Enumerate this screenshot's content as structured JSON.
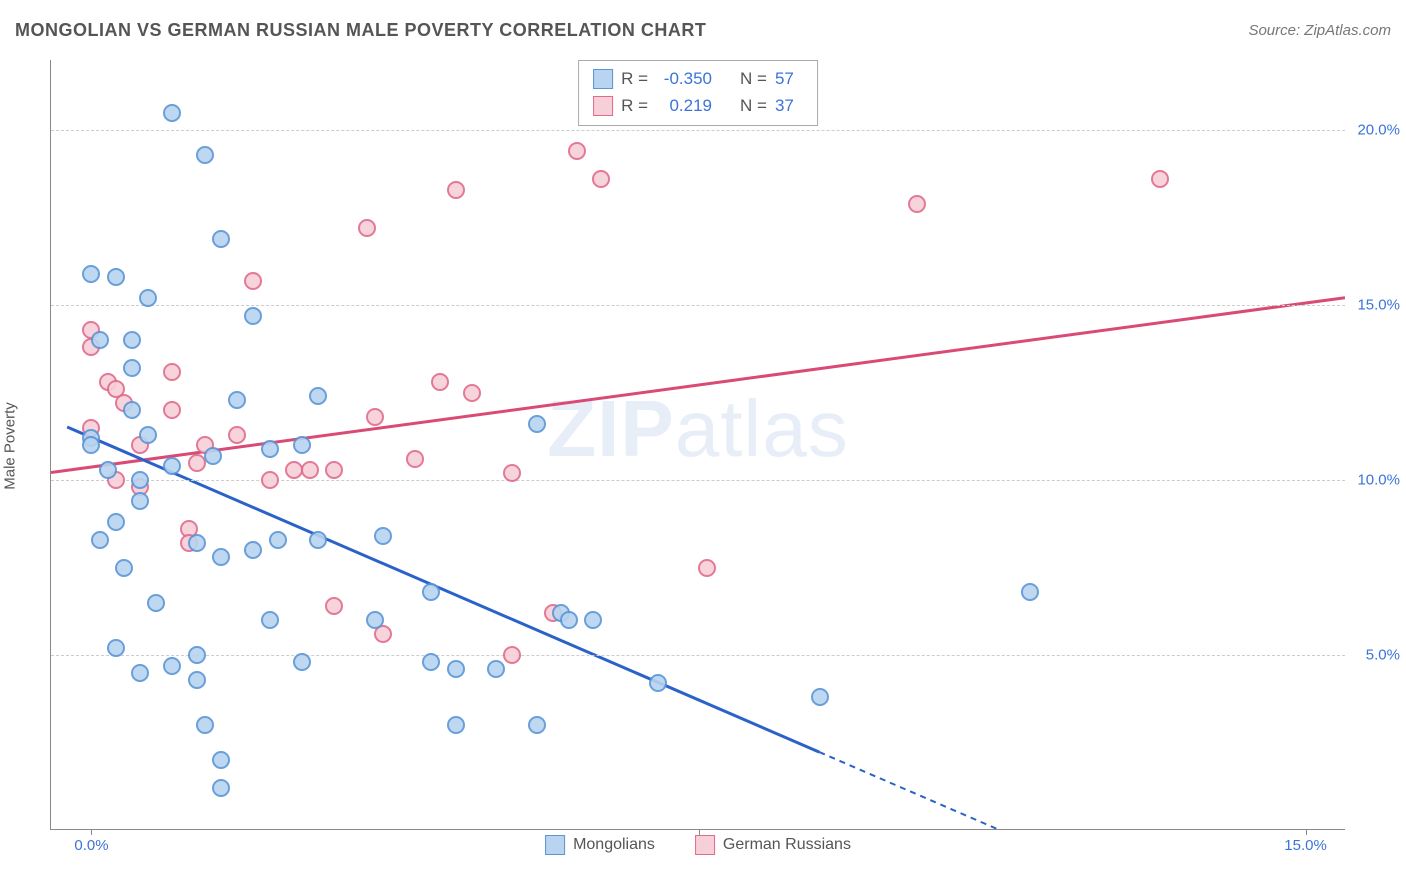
{
  "chart": {
    "type": "scatter",
    "title": "MONGOLIAN VS GERMAN RUSSIAN MALE POVERTY CORRELATION CHART",
    "title_color": "#555555",
    "title_fontsize": 18,
    "source": "Source: ZipAtlas.com",
    "source_color": "#777777",
    "watermark": "ZIPatlas",
    "watermark_color": "#e8eef8",
    "ylabel": "Male Poverty",
    "label_color": "#555555",
    "label_fontsize": 15,
    "background_color": "#ffffff",
    "axis_color": "#888888",
    "grid_color": "#cccccc",
    "grid_dash": true,
    "tick_label_color": "#3b74d8",
    "xlim": [
      -0.5,
      15.5
    ],
    "ylim": [
      0,
      22
    ],
    "xticks": [
      {
        "value": 0,
        "label": "0.0%"
      },
      {
        "value": 7.5,
        "label": ""
      },
      {
        "value": 15,
        "label": "15.0%"
      }
    ],
    "yticks": [
      {
        "value": 5,
        "label": "5.0%"
      },
      {
        "value": 10,
        "label": "10.0%"
      },
      {
        "value": 15,
        "label": "15.0%"
      },
      {
        "value": 20,
        "label": "20.0%"
      }
    ],
    "marker_radius": 9,
    "series_a": {
      "name": "Mongolians",
      "fill_color": "#b8d4f0",
      "border_color": "#5a95d6",
      "stats": {
        "R_label": "R =",
        "R_value": "-0.350",
        "N_label": "N =",
        "N_value": "57"
      },
      "trend": {
        "x1": -0.3,
        "y1": 11.5,
        "x2": 9.0,
        "y2": 2.2,
        "x3": 11.6,
        "y3": -0.4,
        "color": "#2a62c9",
        "width": 3
      },
      "points": [
        [
          0.1,
          14.0
        ],
        [
          0.0,
          15.9
        ],
        [
          0.3,
          15.8
        ],
        [
          0.0,
          11.2
        ],
        [
          0.0,
          11.0
        ],
        [
          0.5,
          14.0
        ],
        [
          0.7,
          15.2
        ],
        [
          1.0,
          20.5
        ],
        [
          1.4,
          19.3
        ],
        [
          1.6,
          16.9
        ],
        [
          1.5,
          10.7
        ],
        [
          0.7,
          11.3
        ],
        [
          0.5,
          12.0
        ],
        [
          0.2,
          10.3
        ],
        [
          0.6,
          9.4
        ],
        [
          1.0,
          10.4
        ],
        [
          1.3,
          8.2
        ],
        [
          1.6,
          7.8
        ],
        [
          0.3,
          8.8
        ],
        [
          0.1,
          8.3
        ],
        [
          0.4,
          7.5
        ],
        [
          0.8,
          6.5
        ],
        [
          1.3,
          5.0
        ],
        [
          1.0,
          4.7
        ],
        [
          1.3,
          4.3
        ],
        [
          0.3,
          5.2
        ],
        [
          0.6,
          4.5
        ],
        [
          1.8,
          12.3
        ],
        [
          2.0,
          14.7
        ],
        [
          2.2,
          10.9
        ],
        [
          2.6,
          11.0
        ],
        [
          2.3,
          8.3
        ],
        [
          2.8,
          12.4
        ],
        [
          2.8,
          8.3
        ],
        [
          2.0,
          8.0
        ],
        [
          2.2,
          6.0
        ],
        [
          2.6,
          4.8
        ],
        [
          1.4,
          3.0
        ],
        [
          1.6,
          2.0
        ],
        [
          1.6,
          1.2
        ],
        [
          3.6,
          8.4
        ],
        [
          3.5,
          6.0
        ],
        [
          4.2,
          4.8
        ],
        [
          4.5,
          4.6
        ],
        [
          4.5,
          3.0
        ],
        [
          4.2,
          6.8
        ],
        [
          5.0,
          4.6
        ],
        [
          5.5,
          11.6
        ],
        [
          5.8,
          6.2
        ],
        [
          5.9,
          6.0
        ],
        [
          6.2,
          6.0
        ],
        [
          7.0,
          4.2
        ],
        [
          5.5,
          3.0
        ],
        [
          9.0,
          3.8
        ],
        [
          11.6,
          6.8
        ],
        [
          0.5,
          13.2
        ],
        [
          0.6,
          10.0
        ]
      ]
    },
    "series_b": {
      "name": "German Russians",
      "fill_color": "#f7cfd9",
      "border_color": "#e16b8c",
      "stats": {
        "R_label": "R =",
        "R_value": " 0.219",
        "N_label": "N =",
        "N_value": "37"
      },
      "trend": {
        "x1": -0.5,
        "y1": 10.2,
        "x2": 15.5,
        "y2": 15.2,
        "color": "#d94a74",
        "width": 3
      },
      "points": [
        [
          0.0,
          14.3
        ],
        [
          0.0,
          13.8
        ],
        [
          0.2,
          12.8
        ],
        [
          0.3,
          12.6
        ],
        [
          0.3,
          10.0
        ],
        [
          0.6,
          11.0
        ],
        [
          0.6,
          9.8
        ],
        [
          1.0,
          13.1
        ],
        [
          1.0,
          12.0
        ],
        [
          1.4,
          11.0
        ],
        [
          1.3,
          10.5
        ],
        [
          1.2,
          8.6
        ],
        [
          1.2,
          8.2
        ],
        [
          1.8,
          11.3
        ],
        [
          2.0,
          15.7
        ],
        [
          2.2,
          10.0
        ],
        [
          2.5,
          10.3
        ],
        [
          2.7,
          10.3
        ],
        [
          3.0,
          10.3
        ],
        [
          3.4,
          17.2
        ],
        [
          3.5,
          11.8
        ],
        [
          3.0,
          6.4
        ],
        [
          3.6,
          5.6
        ],
        [
          4.0,
          10.6
        ],
        [
          4.3,
          12.8
        ],
        [
          4.5,
          18.3
        ],
        [
          4.7,
          12.5
        ],
        [
          5.2,
          10.2
        ],
        [
          5.7,
          6.2
        ],
        [
          5.2,
          5.0
        ],
        [
          6.0,
          19.4
        ],
        [
          6.3,
          18.6
        ],
        [
          7.6,
          7.5
        ],
        [
          10.2,
          17.9
        ],
        [
          13.2,
          18.6
        ],
        [
          0.0,
          11.5
        ],
        [
          0.4,
          12.2
        ]
      ]
    },
    "legend_bottom": [
      {
        "label": "Mongolians",
        "fill": "#b8d4f0",
        "border": "#5a95d6"
      },
      {
        "label": "German Russians",
        "fill": "#f7cfd9",
        "border": "#e16b8c"
      }
    ]
  }
}
